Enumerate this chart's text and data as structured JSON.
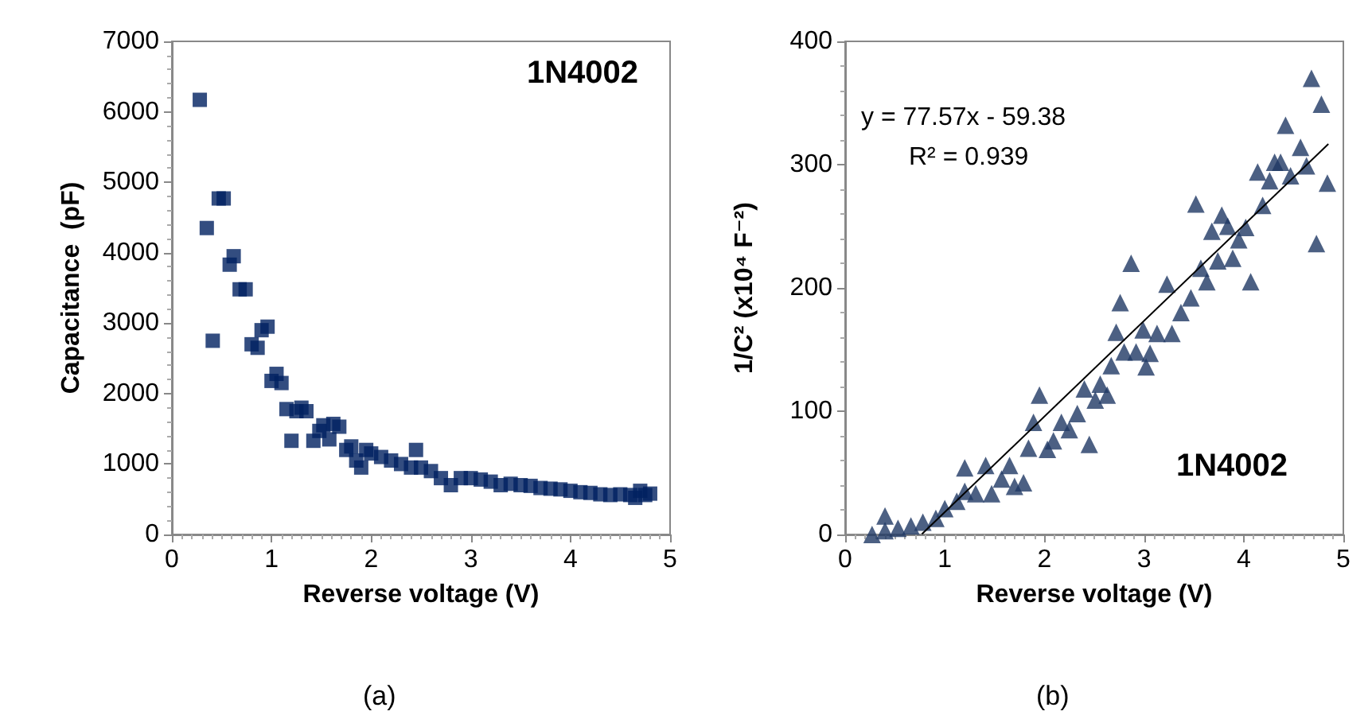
{
  "chart_data": [
    {
      "type": "scatter",
      "xlabel": "Reverse voltage (V)",
      "ylabel": "Capacitance  (pF)",
      "annotations": [
        "1N4002",
        "(a)"
      ],
      "marker": "square",
      "grid": false,
      "xlim": [
        0,
        5
      ],
      "xticks": [
        0,
        1,
        2,
        3,
        4,
        5
      ],
      "ylim": [
        0,
        7000
      ],
      "yticks": [
        0,
        1000,
        2000,
        3000,
        4000,
        5000,
        6000,
        7000
      ],
      "series": [
        {
          "color": "#002060",
          "x": [
            0.28,
            0.35,
            0.41,
            0.47,
            0.52,
            0.58,
            0.62,
            0.68,
            0.74,
            0.8,
            0.86,
            0.9,
            0.96,
            1.0,
            1.05,
            1.1,
            1.15,
            1.2,
            1.25,
            1.3,
            1.35,
            1.42,
            1.48,
            1.52,
            1.58,
            1.62,
            1.68,
            1.75,
            1.8,
            1.85,
            1.9,
            1.95,
            2.0,
            2.1,
            2.2,
            2.3,
            2.4,
            2.45,
            2.5,
            2.6,
            2.7,
            2.8,
            2.9,
            3.0,
            3.1,
            3.2,
            3.3,
            3.4,
            3.5,
            3.6,
            3.7,
            3.8,
            3.9,
            4.0,
            4.1,
            4.2,
            4.3,
            4.4,
            4.5,
            4.6,
            4.65,
            4.7,
            4.75,
            4.8
          ],
          "values": [
            6170,
            4350,
            2750,
            4770,
            4770,
            3830,
            3950,
            3480,
            3480,
            2700,
            2650,
            2900,
            2950,
            2180,
            2280,
            2150,
            1780,
            1330,
            1750,
            1800,
            1750,
            1330,
            1470,
            1550,
            1350,
            1570,
            1530,
            1200,
            1250,
            1050,
            950,
            1200,
            1150,
            1100,
            1050,
            1000,
            950,
            1200,
            950,
            900,
            800,
            700,
            800,
            800,
            780,
            750,
            700,
            720,
            700,
            690,
            660,
            650,
            640,
            620,
            600,
            590,
            570,
            560,
            570,
            560,
            520,
            620,
            560,
            580
          ]
        }
      ]
    },
    {
      "type": "scatter",
      "xlabel": "Reverse voltage (V)",
      "ylabel": "1/C² (x10⁴ F⁻²)",
      "annotations": [
        "y = 77.57x - 59.38",
        "R² = 0.939",
        "1N4002",
        "(b)"
      ],
      "marker": "triangle",
      "grid": false,
      "xlim": [
        0,
        5
      ],
      "xticks": [
        0,
        1,
        2,
        3,
        4,
        5
      ],
      "ylim": [
        0,
        400
      ],
      "yticks": [
        0,
        100,
        200,
        300,
        400
      ],
      "series": [
        {
          "color": "#1f3864",
          "x": [
            0.27,
            0.4,
            0.4,
            0.53,
            0.66,
            0.78,
            0.91,
            1.0,
            1.12,
            1.2,
            1.2,
            1.31,
            1.41,
            1.47,
            1.57,
            1.65,
            1.7,
            1.79,
            1.84,
            1.89,
            1.95,
            2.03,
            2.09,
            2.17,
            2.25,
            2.33,
            2.4,
            2.45,
            2.51,
            2.56,
            2.63,
            2.67,
            2.72,
            2.76,
            2.8,
            2.87,
            2.92,
            2.99,
            3.02,
            3.06,
            3.13,
            3.23,
            3.28,
            3.37,
            3.47,
            3.52,
            3.57,
            3.63,
            3.68,
            3.74,
            3.78,
            3.84,
            3.89,
            3.95,
            4.02,
            4.07,
            4.14,
            4.19,
            4.26,
            4.31,
            4.37,
            4.42,
            4.47,
            4.57,
            4.63,
            4.68,
            4.73,
            4.78,
            4.84
          ],
          "values": [
            0,
            15,
            3,
            5,
            7,
            10,
            13,
            21,
            27,
            54,
            35,
            33,
            56,
            33,
            45,
            56,
            39,
            42,
            70,
            91,
            113,
            69,
            76,
            91,
            85,
            98,
            118,
            73,
            109,
            122,
            113,
            137,
            164,
            188,
            148,
            220,
            148,
            166,
            136,
            147,
            163,
            203,
            163,
            180,
            192,
            268,
            216,
            205,
            246,
            222,
            259,
            250,
            224,
            239,
            249,
            205,
            294,
            267,
            287,
            302,
            302,
            332,
            291,
            314,
            299,
            370,
            236,
            349,
            285
          ]
        },
        {
          "type": "line",
          "color": "#000000",
          "marker": "none",
          "x": [
            0.77,
            4.85
          ],
          "values": [
            0.35,
            316.8
          ]
        }
      ]
    }
  ]
}
